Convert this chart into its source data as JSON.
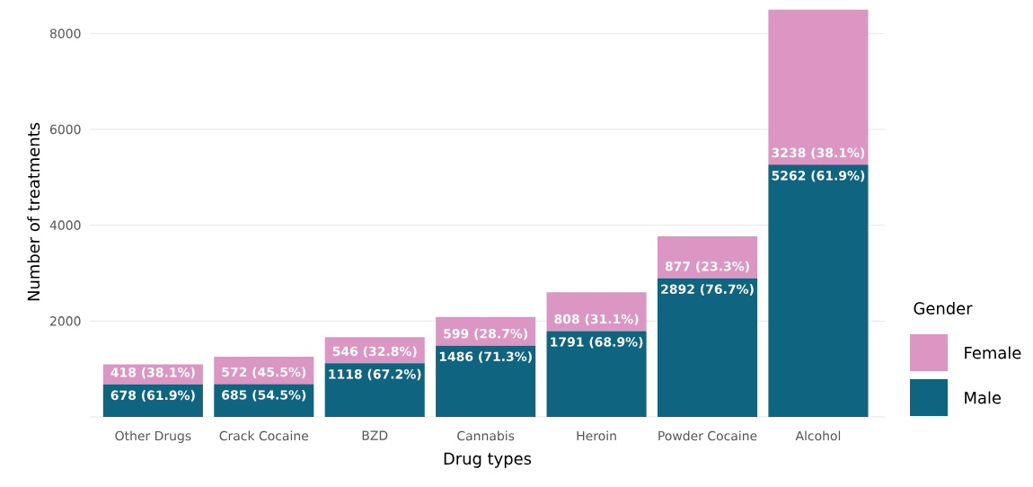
{
  "chart_data": {
    "type": "bar",
    "stacked": true,
    "xlabel": "Drug types",
    "ylabel": "Number of treatments",
    "legend_title": "Gender",
    "legend": "right",
    "grid": "y",
    "categories": [
      "Other Drugs",
      "Crack Cocaine",
      "BZD",
      "Cannabis",
      "Heroin",
      "Powder Cocaine",
      "Alcohol"
    ],
    "ylim": [
      0,
      8550
    ],
    "yticks": [
      2000,
      4000,
      6000,
      8000
    ],
    "series": [
      {
        "name": "Male",
        "color": "#0f6480",
        "values": [
          678,
          685,
          1118,
          1486,
          1791,
          2892,
          5262
        ],
        "value_labels": [
          "678 (61.9%)",
          "685 (54.5%)",
          "1118 (67.2%)",
          "1486 (71.3%)",
          "1791 (68.9%)",
          "2892 (76.7%)",
          "5262 (61.9%)"
        ]
      },
      {
        "name": "Female",
        "color": "#db96c4",
        "values": [
          418,
          572,
          546,
          599,
          808,
          877,
          3238
        ],
        "value_labels": [
          "418 (38.1%)",
          "572 (45.5%)",
          "546 (32.8%)",
          "599 (28.7%)",
          "808 (31.1%)",
          "877 (23.3%)",
          "3238 (38.1%)"
        ]
      }
    ]
  }
}
